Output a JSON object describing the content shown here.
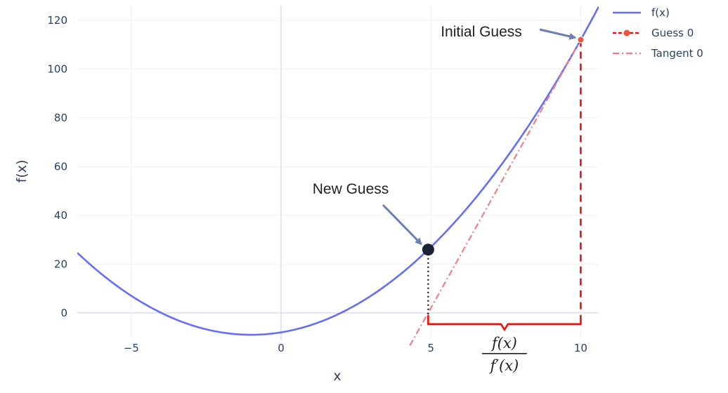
{
  "chart_data": {
    "type": "line",
    "xlabel": "x",
    "ylabel": "f(x)",
    "xlim": [
      -6.8,
      10.6
    ],
    "ylim": [
      -11,
      126
    ],
    "xticks": [
      -5,
      0,
      5,
      10
    ],
    "xtick_labels": [
      "−5",
      "0",
      "5",
      "10"
    ],
    "yticks": [
      0,
      20,
      40,
      60,
      80,
      100,
      120
    ],
    "ytick_labels": [
      "0",
      "20",
      "40",
      "60",
      "80",
      "100",
      "120"
    ],
    "grid": true,
    "legend_position": "top-right",
    "colors": {
      "fx": "#636efa",
      "guess": "#ef553b",
      "tangent": "#f07f7f",
      "bracket": "#e8120c",
      "new_guess": "#1b2236",
      "arrow": "#6a7fb2"
    },
    "series": [
      {
        "name": "f(x)",
        "kind": "function",
        "formula": "x^2 + 2x - 8",
        "x_range": [
          -6.8,
          10.6
        ]
      },
      {
        "name": "Guess 0",
        "kind": "marker-with-dashed-drop",
        "x": 10,
        "y": 112
      },
      {
        "name": "Tangent 0",
        "kind": "tangent-line",
        "through": [
          10,
          112
        ],
        "slope": 22,
        "x_range": [
          4.3,
          10
        ]
      }
    ],
    "new_guess": {
      "x": 4.91,
      "y": 25.93
    },
    "annotations": [
      {
        "text": "Initial Guess",
        "points_to": [
          10,
          112
        ]
      },
      {
        "text": "New Guess",
        "points_to": [
          4.91,
          25.93
        ]
      }
    ],
    "formula_label": {
      "numerator": "f(x)",
      "denominator": "f′(x)"
    }
  }
}
